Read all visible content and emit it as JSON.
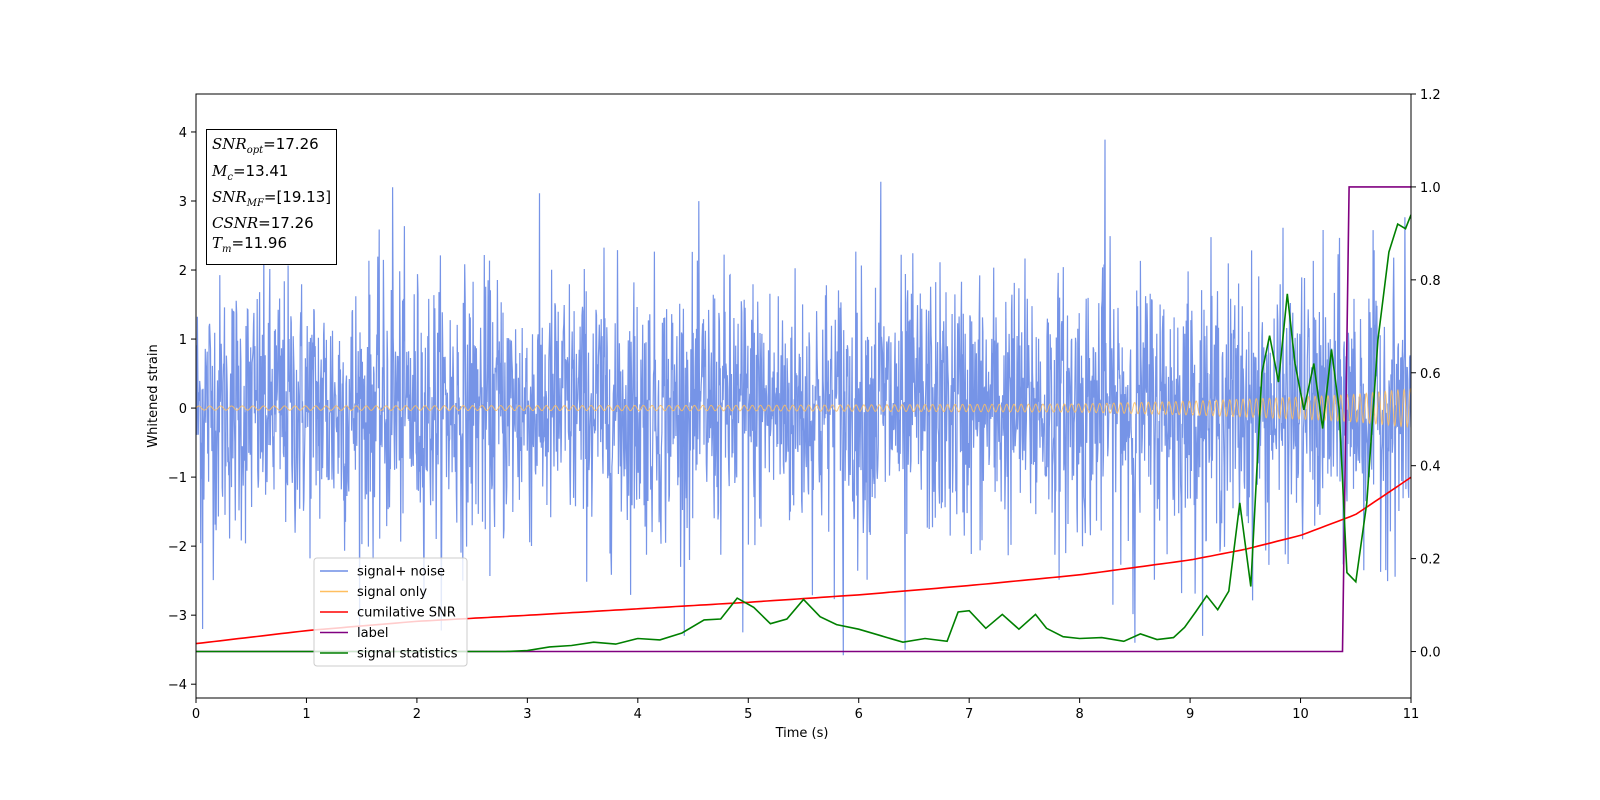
{
  "chart_data": {
    "type": "line",
    "xlabel": "Time (s)",
    "ylabel": "Whitened strain",
    "xlim": [
      0,
      11
    ],
    "ylim": [
      -4.2,
      4.55
    ],
    "y2lim": [
      -0.1,
      1.2
    ],
    "xticks": [
      0,
      1,
      2,
      3,
      4,
      5,
      6,
      7,
      8,
      9,
      10,
      11
    ],
    "yticks": [
      -4,
      -3,
      -2,
      -1,
      0,
      1,
      2,
      3,
      4
    ],
    "yticks_labels": [
      "−4",
      "−3",
      "−2",
      "−1",
      "0",
      "1",
      "2",
      "3",
      "4"
    ],
    "y2ticks": [
      0.0,
      0.2,
      0.4,
      0.6,
      0.8,
      1.0,
      1.2
    ],
    "y2ticks_labels": [
      "0.0",
      "0.2",
      "0.4",
      "0.6",
      "0.8",
      "1.0",
      "1.2"
    ],
    "legend_position": "lower-left",
    "grid": false,
    "annotation": {
      "snr_opt": {
        "sym": "SNR",
        "sub": "opt",
        "value": "=17.26"
      },
      "mc": {
        "sym": "M",
        "sub": "c",
        "value": "=13.41"
      },
      "snr_mf": {
        "sym": "SNR",
        "sub": "MF",
        "value": "=[19.13]"
      },
      "csnr": {
        "sym": "CSNR",
        "value": "=17.26"
      },
      "tm": {
        "sym": "T",
        "sub": "m",
        "value": "=11.96"
      }
    },
    "series": [
      {
        "name": "signal+ noise",
        "axis": "left",
        "color": "#6f8ee6",
        "description_values": "noise band roughly ±1.8 with spikes up to 3.9 at t≈8.23 and down to -3.6 at t≈5.85",
        "envelope": {
          "x": [
            0,
            11
          ],
          "typical_amplitude": 1.5,
          "peak_max": 3.89,
          "peak_min": -3.58
        }
      },
      {
        "name": "signal only",
        "axis": "left",
        "color": "#ffbf60",
        "amplitude_points": [
          [
            0,
            0.03
          ],
          [
            5,
            0.04
          ],
          [
            8,
            0.06
          ],
          [
            9,
            0.1
          ],
          [
            10,
            0.16
          ],
          [
            10.5,
            0.2
          ],
          [
            11,
            0.28
          ]
        ]
      },
      {
        "name": "cumilative SNR",
        "axis": "right",
        "color": "#ff0000",
        "x": [
          0,
          1,
          2,
          3,
          4,
          5,
          6,
          7,
          8,
          9,
          9.5,
          10,
          10.5,
          11
        ],
        "y": [
          0.017,
          0.045,
          0.065,
          0.078,
          0.092,
          0.106,
          0.122,
          0.142,
          0.165,
          0.197,
          0.22,
          0.25,
          0.295,
          0.375
        ]
      },
      {
        "name": "label",
        "axis": "right",
        "color": "#800080",
        "x": [
          0,
          10.38,
          10.44,
          11
        ],
        "y": [
          0.0,
          0.0,
          1.0,
          1.0
        ]
      },
      {
        "name": "signal statistics",
        "axis": "right",
        "color": "#008000",
        "x": [
          0,
          1.0,
          2.0,
          2.8,
          3.0,
          3.2,
          3.4,
          3.6,
          3.8,
          4.0,
          4.2,
          4.4,
          4.6,
          4.75,
          4.9,
          5.05,
          5.2,
          5.35,
          5.5,
          5.65,
          5.8,
          6.0,
          6.2,
          6.4,
          6.6,
          6.8,
          6.9,
          7.0,
          7.15,
          7.3,
          7.45,
          7.6,
          7.7,
          7.85,
          8.0,
          8.2,
          8.4,
          8.55,
          8.7,
          8.85,
          8.95,
          9.05,
          9.15,
          9.25,
          9.35,
          9.45,
          9.55,
          9.65,
          9.72,
          9.8,
          9.88,
          9.95,
          10.03,
          10.12,
          10.2,
          10.28,
          10.35,
          10.42,
          10.5,
          10.6,
          10.7,
          10.8,
          10.88,
          10.95,
          11.0
        ],
        "y": [
          0.0,
          0.0,
          0.0,
          0.0,
          0.002,
          0.01,
          0.013,
          0.02,
          0.016,
          0.028,
          0.025,
          0.04,
          0.068,
          0.07,
          0.115,
          0.095,
          0.06,
          0.07,
          0.112,
          0.075,
          0.058,
          0.048,
          0.034,
          0.02,
          0.028,
          0.022,
          0.085,
          0.088,
          0.05,
          0.08,
          0.048,
          0.08,
          0.05,
          0.032,
          0.028,
          0.03,
          0.022,
          0.038,
          0.026,
          0.03,
          0.052,
          0.085,
          0.12,
          0.09,
          0.13,
          0.32,
          0.14,
          0.6,
          0.68,
          0.58,
          0.77,
          0.62,
          0.52,
          0.62,
          0.48,
          0.65,
          0.52,
          0.17,
          0.15,
          0.32,
          0.67,
          0.86,
          0.92,
          0.91,
          0.94
        ]
      }
    ]
  }
}
